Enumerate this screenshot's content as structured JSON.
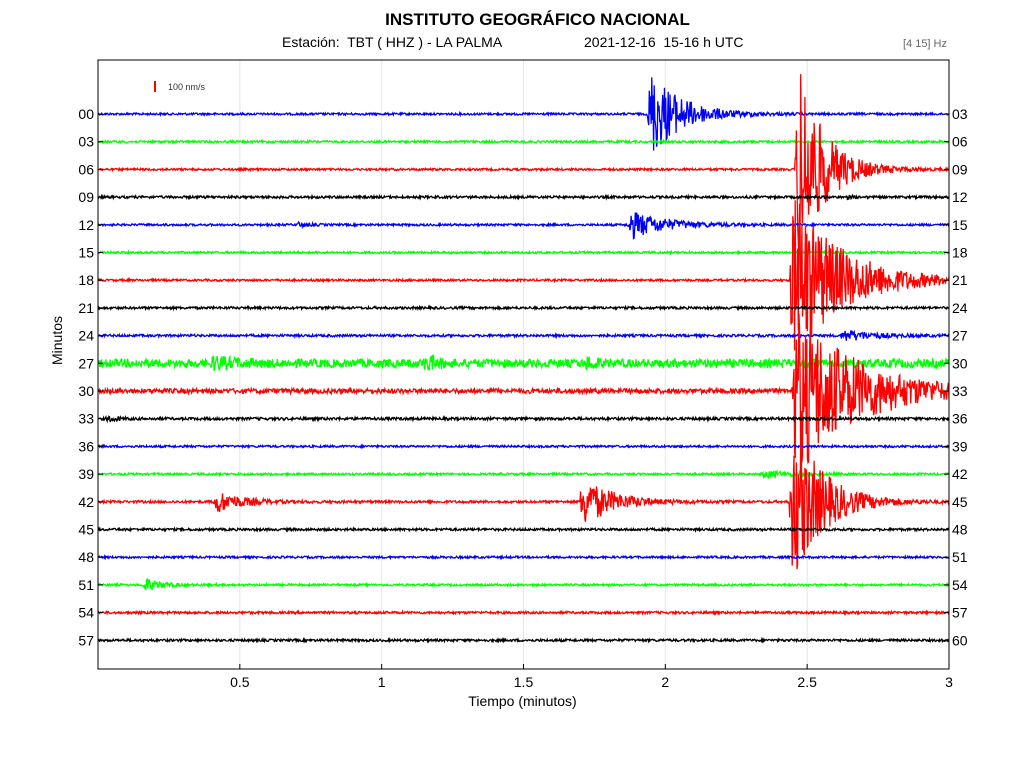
{
  "header": {
    "title": "INSTITUTO GEOGRÁFICO NACIONAL",
    "station": "Estación:  TBT ( HHZ ) - LA PALMA",
    "datetime": "2021-12-16  15-16 h UTC",
    "filter": "[4 15] Hz"
  },
  "colors": {
    "blue": "#0000ff",
    "green": "#00ff00",
    "red": "#ff0000",
    "black": "#000000",
    "grid": "#e6e6e6"
  },
  "chart_data": {
    "type": "line",
    "title": "INSTITUTO GEOGRÁFICO NACIONAL",
    "xlabel": "Tiempo (minutos)",
    "ylabel": "Minutos",
    "xlim": [
      0,
      3
    ],
    "x_ticks": [
      "0.5",
      "1",
      "1.5",
      "2",
      "2.5",
      "3"
    ],
    "x_tick_values": [
      0.5,
      1,
      1.5,
      2,
      2.5,
      3
    ],
    "grid": true,
    "scale_bar": "100 nm/s",
    "traces": [
      {
        "left": "00",
        "right": "03",
        "color": "blue",
        "noise": 0.35,
        "events": [
          {
            "t": 1.94,
            "amp": 16,
            "dur": 0.3
          }
        ]
      },
      {
        "left": "03",
        "right": "06",
        "color": "green",
        "noise": 0.35,
        "events": []
      },
      {
        "left": "06",
        "right": "09",
        "color": "red",
        "noise": 0.35,
        "events": [
          {
            "t": 2.46,
            "amp": 40,
            "dur": 0.25
          }
        ]
      },
      {
        "left": "09",
        "right": "12",
        "color": "black",
        "noise": 0.4,
        "events": [
          {
            "t": 2.63,
            "amp": 1.2,
            "dur": 0.05
          }
        ]
      },
      {
        "left": "12",
        "right": "15",
        "color": "blue",
        "noise": 0.35,
        "events": [
          {
            "t": 0.7,
            "amp": 1.0,
            "dur": 0.1
          },
          {
            "t": 1.87,
            "amp": 5,
            "dur": 0.35
          }
        ]
      },
      {
        "left": "15",
        "right": "18",
        "color": "green",
        "noise": 0.35,
        "events": []
      },
      {
        "left": "18",
        "right": "21",
        "color": "red",
        "noise": 0.35,
        "events": [
          {
            "t": 2.44,
            "amp": 30,
            "dur": 0.5
          }
        ]
      },
      {
        "left": "21",
        "right": "24",
        "color": "black",
        "noise": 0.4,
        "events": []
      },
      {
        "left": "24",
        "right": "27",
        "color": "blue",
        "noise": 0.4,
        "events": [
          {
            "t": 2.62,
            "amp": 2,
            "dur": 0.3
          }
        ]
      },
      {
        "left": "27",
        "right": "30",
        "color": "green",
        "noise": 1.4,
        "events": [
          {
            "t": 0.4,
            "amp": 2.0,
            "dur": 0.2
          },
          {
            "t": 1.15,
            "amp": 3,
            "dur": 0.1
          },
          {
            "t": 1.72,
            "amp": 2,
            "dur": 0.1
          }
        ]
      },
      {
        "left": "30",
        "right": "33",
        "color": "red",
        "noise": 0.8,
        "events": [
          {
            "t": 2.45,
            "amp": 30,
            "dur": 0.6
          }
        ]
      },
      {
        "left": "33",
        "right": "36",
        "color": "black",
        "noise": 0.45,
        "events": [
          {
            "t": 0.03,
            "amp": 1.4,
            "dur": 0.08
          }
        ]
      },
      {
        "left": "36",
        "right": "39",
        "color": "blue",
        "noise": 0.35,
        "events": []
      },
      {
        "left": "39",
        "right": "42",
        "color": "green",
        "noise": 0.35,
        "events": [
          {
            "t": 2.34,
            "amp": 1.2,
            "dur": 0.3
          }
        ]
      },
      {
        "left": "42",
        "right": "45",
        "color": "red",
        "noise": 0.4,
        "events": [
          {
            "t": 0.41,
            "amp": 4,
            "dur": 0.25
          },
          {
            "t": 1.7,
            "amp": 9,
            "dur": 0.3
          },
          {
            "t": 2.44,
            "amp": 30,
            "dur": 0.3
          }
        ]
      },
      {
        "left": "45",
        "right": "48",
        "color": "black",
        "noise": 0.4,
        "events": []
      },
      {
        "left": "48",
        "right": "51",
        "color": "blue",
        "noise": 0.35,
        "events": []
      },
      {
        "left": "51",
        "right": "54",
        "color": "green",
        "noise": 0.35,
        "events": [
          {
            "t": 0.16,
            "amp": 2.5,
            "dur": 0.15
          }
        ]
      },
      {
        "left": "54",
        "right": "57",
        "color": "red",
        "noise": 0.4,
        "events": []
      },
      {
        "left": "57",
        "right": "60",
        "color": "black",
        "noise": 0.4,
        "events": []
      }
    ]
  }
}
